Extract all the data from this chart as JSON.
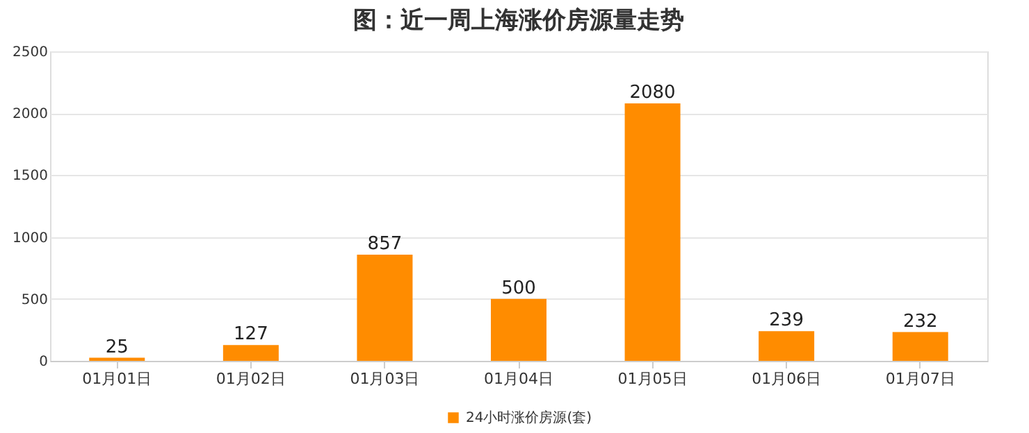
{
  "chart_data": {
    "type": "bar",
    "title": "图：近一周上海涨价房源量走势",
    "categories": [
      "01月01日",
      "01月02日",
      "01月03日",
      "01月04日",
      "01月05日",
      "01月06日",
      "01月07日"
    ],
    "series": [
      {
        "name": "24小时涨价房源(套)",
        "color": "#ff8c00",
        "values": [
          25,
          127,
          857,
          500,
          2080,
          239,
          232
        ]
      }
    ],
    "ylim": [
      0,
      2500
    ],
    "yticks": [
      0,
      500,
      1000,
      1500,
      2000,
      2500
    ],
    "grid": "y",
    "legend": "bottom",
    "data_labels": true
  }
}
